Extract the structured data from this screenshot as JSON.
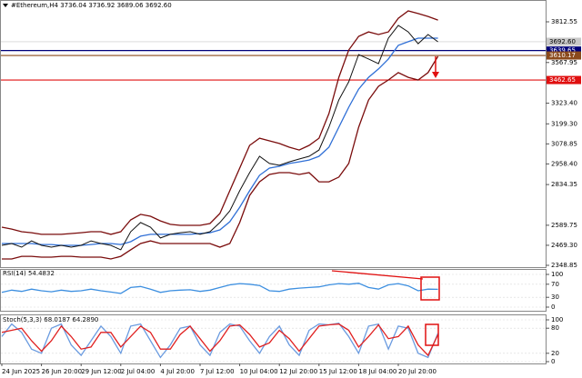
{
  "chart_data": [
    {
      "type": "line",
      "title": "#Ethereum,H4  3736.04 3736.92 3689.06 3692.60",
      "categories": [
        "24 Jun 2025",
        null,
        null,
        null,
        "26 Jun 20:00",
        null,
        null,
        null,
        "29 Jun 12:00",
        null,
        null,
        null,
        "2 Jul 04:00",
        null,
        null,
        null,
        "4 Jul 20:00",
        null,
        null,
        null,
        "7 Jul 12:00",
        null,
        null,
        null,
        "10 Jul 04:00",
        null,
        null,
        null,
        "12 Jul 20:00",
        null,
        null,
        null,
        "15 Jul 12:00",
        null,
        null,
        null,
        "18 Jul 04:00",
        null,
        null,
        null,
        "20 Jul 20:00",
        null,
        null,
        null,
        null
      ],
      "series": [
        {
          "color": "#7a0c0c",
          "values": [
            2578,
            2567,
            2551,
            2545,
            2535,
            2535,
            2535,
            2540,
            2545,
            2551,
            2551,
            2535,
            2551,
            2622,
            2655,
            2644,
            2616,
            2595,
            2589,
            2589,
            2589,
            2600,
            2660,
            2797,
            2933,
            3070,
            3113,
            3097,
            3081,
            3059,
            3042,
            3070,
            3113,
            3261,
            3479,
            3643,
            3725,
            3752,
            3736,
            3752,
            3834,
            3878,
            3862,
            3845,
            3823
          ]
        },
        {
          "color": "#7a0c0c",
          "values": [
            2387,
            2387,
            2403,
            2403,
            2398,
            2398,
            2403,
            2403,
            2398,
            2398,
            2398,
            2387,
            2403,
            2442,
            2480,
            2496,
            2480,
            2480,
            2480,
            2480,
            2480,
            2480,
            2458,
            2480,
            2606,
            2769,
            2851,
            2895,
            2906,
            2906,
            2895,
            2906,
            2851,
            2851,
            2879,
            2961,
            3179,
            3343,
            3425,
            3463,
            3507,
            3479,
            3463,
            3507,
            3605
          ]
        },
        {
          "color": "#2f6fd6",
          "values": [
            2480,
            2480,
            2480,
            2480,
            2474,
            2474,
            2469,
            2469,
            2469,
            2474,
            2480,
            2480,
            2474,
            2491,
            2524,
            2535,
            2535,
            2535,
            2535,
            2535,
            2540,
            2545,
            2562,
            2611,
            2698,
            2797,
            2890,
            2933,
            2944,
            2961,
            2971,
            2982,
            3004,
            3059,
            3179,
            3299,
            3408,
            3479,
            3529,
            3589,
            3671,
            3693,
            3714,
            3714,
            3714
          ]
        },
        {
          "color": "#111111",
          "values": [
            2469,
            2480,
            2458,
            2496,
            2469,
            2458,
            2469,
            2458,
            2469,
            2496,
            2480,
            2469,
            2442,
            2551,
            2606,
            2578,
            2513,
            2535,
            2545,
            2551,
            2535,
            2551,
            2606,
            2676,
            2797,
            2906,
            3004,
            2961,
            2950,
            2971,
            2988,
            3004,
            3042,
            3179,
            3343,
            3452,
            3616,
            3589,
            3561,
            3714,
            3791,
            3752,
            3681,
            3736,
            3692.6
          ]
        }
      ],
      "ylim": [
        2337.9,
        3932.7
      ],
      "yticks": [
        3812.55,
        3567.95,
        {
          "value": 3323.4,
          "label": "3323.40"
        },
        {
          "value": 3199.3,
          "label": "3199.30"
        },
        3078.85,
        {
          "value": 2958.4,
          "label": "2958.40"
        },
        2834.35,
        2589.75,
        {
          "value": 2469.3,
          "label": "2469.30"
        },
        2348.85
      ],
      "levels": [
        {
          "value": 3692.6,
          "label": "3692.60",
          "color": "#c8c8c8"
        },
        {
          "value": 3639.65,
          "color": "#00007a"
        },
        {
          "value": 3610.17,
          "color": "#8b4a1c"
        },
        {
          "value": 3462.65,
          "color": "#e01010"
        }
      ]
    },
    {
      "type": "line",
      "title": "RSI(14) 54.4832",
      "series": [
        {
          "color": "#3d8fe0",
          "values": [
            45,
            52,
            48,
            55,
            50,
            47,
            52,
            48,
            50,
            55,
            50,
            46,
            42,
            60,
            63,
            55,
            45,
            50,
            52,
            53,
            48,
            52,
            60,
            68,
            72,
            70,
            66,
            50,
            48,
            55,
            58,
            60,
            62,
            68,
            72,
            70,
            73,
            60,
            55,
            68,
            72,
            65,
            50,
            55,
            54.4832
          ]
        }
      ],
      "ylim": [
        0,
        100
      ],
      "yticks": [
        100,
        70,
        30,
        0
      ]
    },
    {
      "type": "line",
      "title": "Stoch(5,3,3) 68.0187 64.2890",
      "series": [
        {
          "color": "#6a9be0",
          "values": [
            60,
            90,
            70,
            30,
            20,
            80,
            90,
            40,
            15,
            50,
            85,
            60,
            20,
            85,
            90,
            50,
            10,
            40,
            80,
            85,
            40,
            15,
            70,
            90,
            85,
            50,
            20,
            60,
            85,
            40,
            15,
            75,
            90,
            88,
            92,
            60,
            20,
            85,
            90,
            30,
            85,
            80,
            20,
            10,
            68.0187
          ]
        },
        {
          "color": "#e02020",
          "values": [
            70,
            75,
            80,
            50,
            25,
            50,
            85,
            60,
            30,
            35,
            70,
            70,
            35,
            60,
            85,
            70,
            30,
            30,
            65,
            85,
            55,
            25,
            50,
            85,
            88,
            65,
            35,
            45,
            75,
            55,
            25,
            55,
            85,
            88,
            90,
            75,
            35,
            60,
            88,
            55,
            60,
            85,
            40,
            15,
            64.289
          ]
        }
      ],
      "ylim": [
        0,
        100
      ],
      "yticks": [
        100,
        80,
        20,
        0
      ]
    }
  ]
}
